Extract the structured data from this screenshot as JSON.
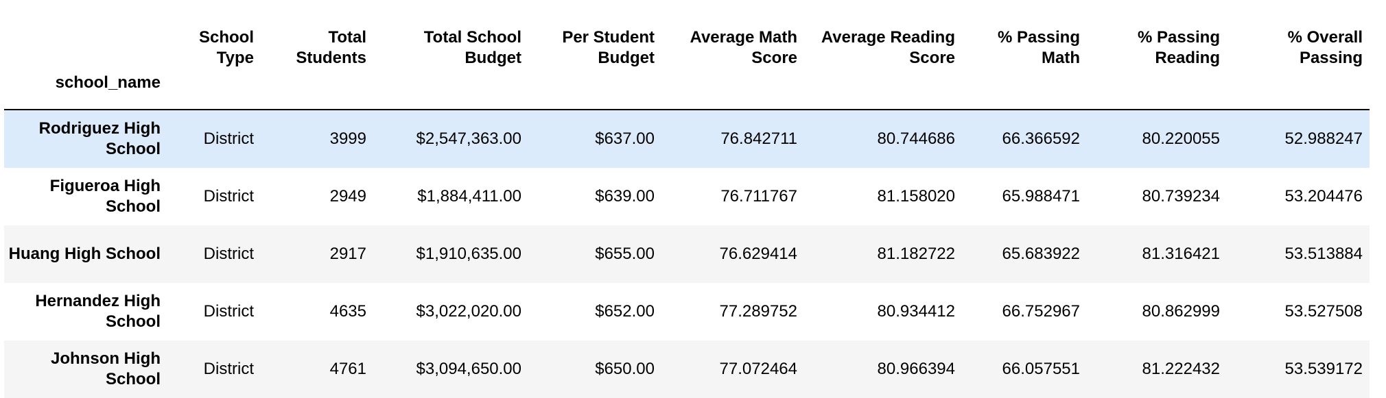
{
  "table": {
    "index_name": "school_name",
    "columns": [
      "School Type",
      "Total Students",
      "Total School Budget",
      "Per Student Budget",
      "Average Math Score",
      "Average Reading Score",
      "% Passing Math",
      "% Passing Reading",
      "% Overall Passing"
    ],
    "rows": [
      {
        "name": "Rodriguez High School",
        "cells": [
          "District",
          "3999",
          "$2,547,363.00",
          "$637.00",
          "76.842711",
          "80.744686",
          "66.366592",
          "80.220055",
          "52.988247"
        ]
      },
      {
        "name": "Figueroa High School",
        "cells": [
          "District",
          "2949",
          "$1,884,411.00",
          "$639.00",
          "76.711767",
          "81.158020",
          "65.988471",
          "80.739234",
          "53.204476"
        ]
      },
      {
        "name": "Huang High School",
        "cells": [
          "District",
          "2917",
          "$1,910,635.00",
          "$655.00",
          "76.629414",
          "81.182722",
          "65.683922",
          "81.316421",
          "53.513884"
        ]
      },
      {
        "name": "Hernandez High School",
        "cells": [
          "District",
          "4635",
          "$3,022,020.00",
          "$652.00",
          "77.289752",
          "80.934412",
          "66.752967",
          "80.862999",
          "53.527508"
        ]
      },
      {
        "name": "Johnson High School",
        "cells": [
          "District",
          "4761",
          "$3,094,650.00",
          "$650.00",
          "77.072464",
          "80.966394",
          "66.057551",
          "81.222432",
          "53.539172"
        ]
      }
    ],
    "colors": {
      "hover_row": "#dcebfc",
      "striped_row": "#f5f5f5",
      "header_rule": "#000000"
    }
  }
}
